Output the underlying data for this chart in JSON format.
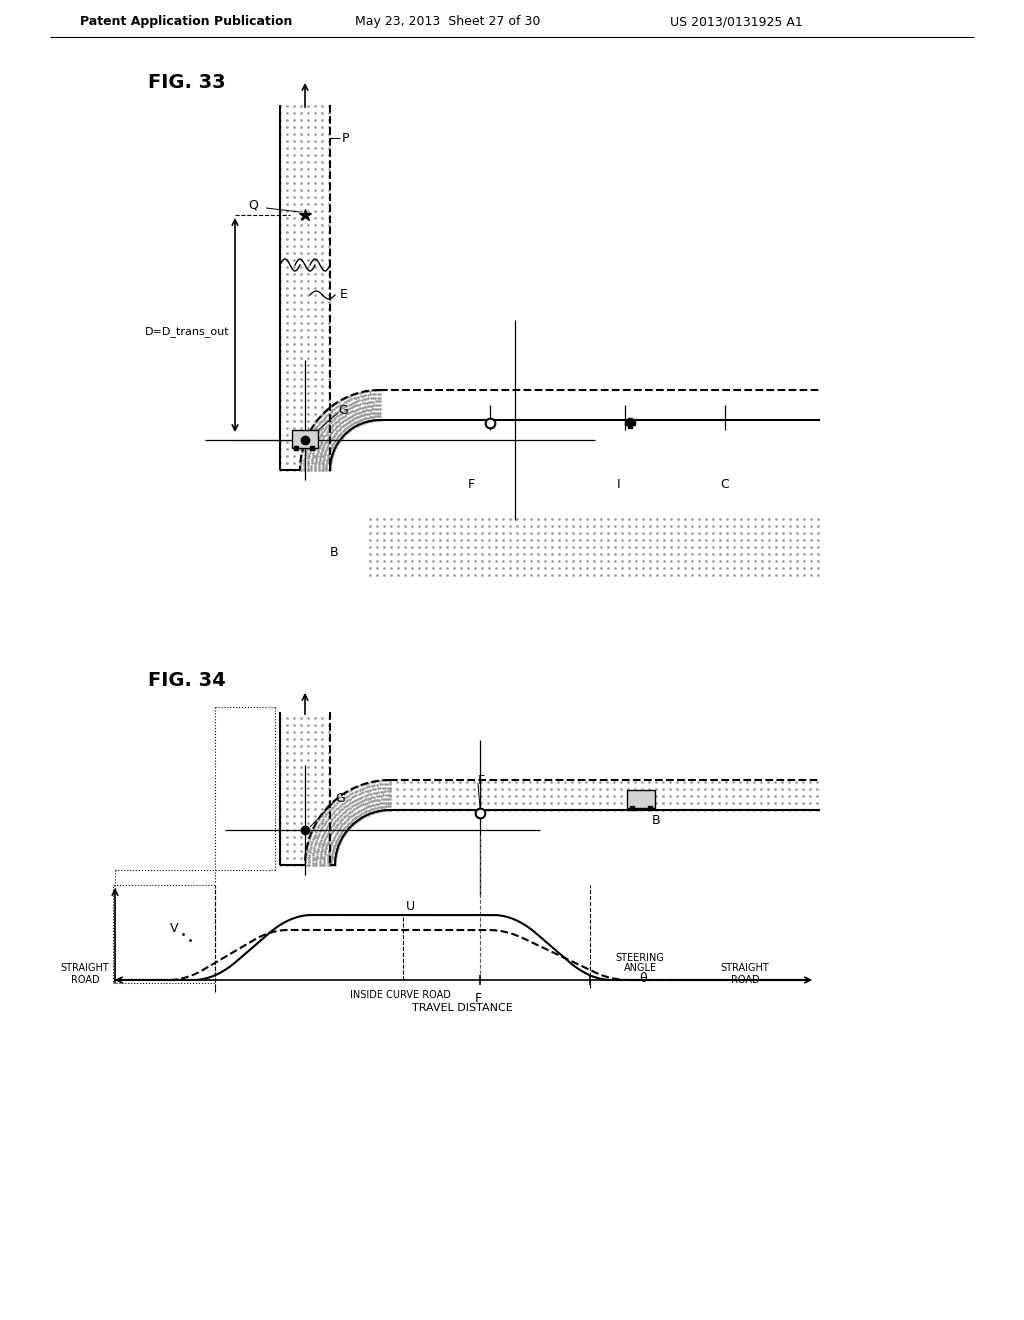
{
  "header_left": "Patent Application Publication",
  "header_mid": "May 23, 2013  Sheet 27 of 30",
  "header_right": "US 2013/0131925 A1",
  "fig33_title": "FIG. 33",
  "fig34_title": "FIG. 34",
  "bg_color": "#ffffff",
  "line_color": "#000000",
  "label_fontsize": 9,
  "header_fontsize": 9,
  "title_fontsize": 14
}
